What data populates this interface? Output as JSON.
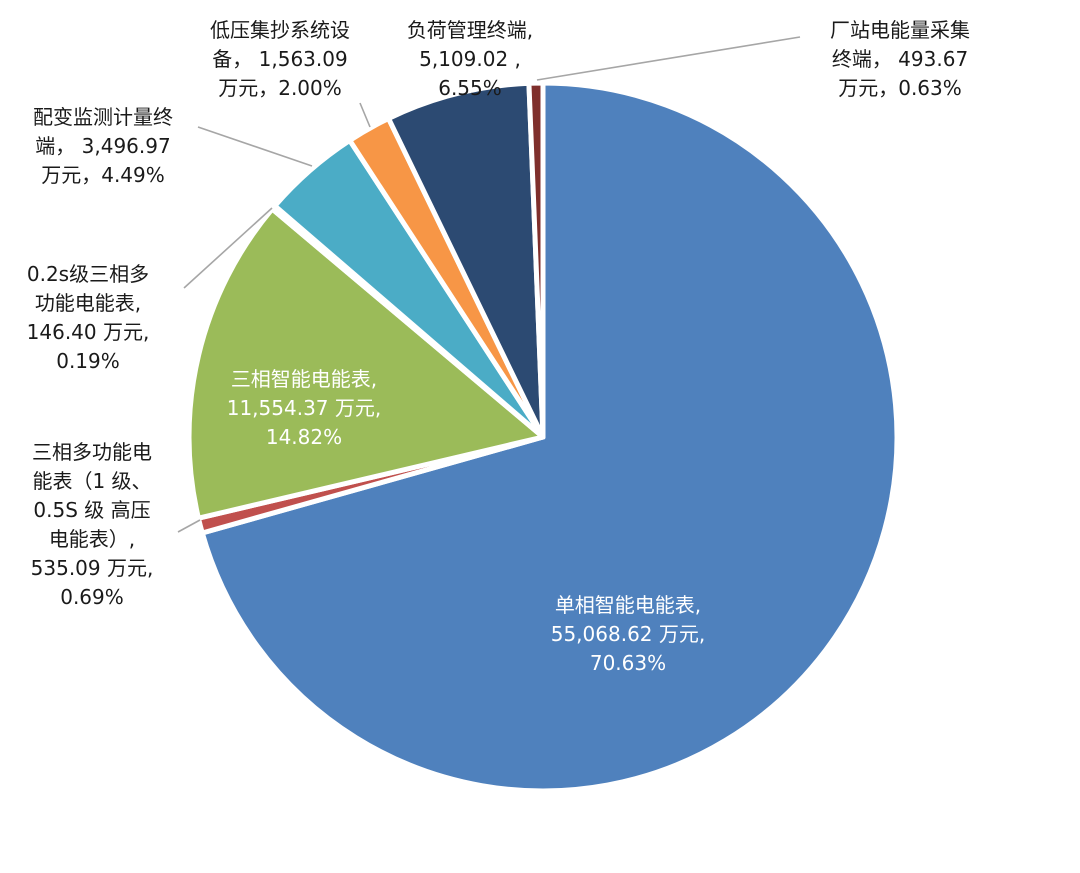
{
  "chart_data": {
    "type": "pie",
    "title": "",
    "unit": "万元",
    "slices": [
      {
        "name": "单相智能电能表",
        "value": 55068.62,
        "percent": 70.63,
        "color": "#4F81BD",
        "label_lines": [
          "单相智能电能表,",
          "55,068.62 万元,",
          "70.63%"
        ]
      },
      {
        "name": "三相多功能电能表（1级、0.5S级 高压电能表）",
        "value": 535.09,
        "percent": 0.69,
        "color": "#C0504D",
        "label_lines": [
          "三相多功能电",
          "能表（1 级、",
          "0.5S 级 高压",
          "电能表）,",
          "535.09 万元,",
          "0.69%"
        ]
      },
      {
        "name": "三相智能电能表",
        "value": 11554.37,
        "percent": 14.82,
        "color": "#9BBB59",
        "label_lines": [
          "三相智能电能表,",
          "11,554.37 万元,",
          "14.82%"
        ]
      },
      {
        "name": "0.2s级三相多功能电能表",
        "value": 146.4,
        "percent": 0.19,
        "color": "#8064A2",
        "label_lines": [
          "0.2s级三相多",
          "功能电能表,",
          "146.40 万元,",
          "0.19%"
        ]
      },
      {
        "name": "配变监测计量终端",
        "value": 3496.97,
        "percent": 4.49,
        "color": "#4BACC6",
        "label_lines": [
          "配变监测计量终",
          "端， 3,496.97",
          "万元，4.49%"
        ]
      },
      {
        "name": "低压集抄系统设备",
        "value": 1563.09,
        "percent": 2.0,
        "color": "#F79646",
        "label_lines": [
          "低压集抄系统设",
          "备， 1,563.09",
          "万元，2.00%"
        ]
      },
      {
        "name": "负荷管理终端",
        "value": 5109.02,
        "percent": 6.55,
        "color": "#2C4A72",
        "label_lines": [
          "负荷管理终端,",
          "5,109.02 ,",
          "6.55%"
        ]
      },
      {
        "name": "厂站电能量采集终端",
        "value": 493.67,
        "percent": 0.63,
        "color": "#7F2F2C",
        "label_lines": [
          "厂站电能量采集",
          "终端， 493.67",
          "万元，0.63%"
        ]
      }
    ]
  }
}
